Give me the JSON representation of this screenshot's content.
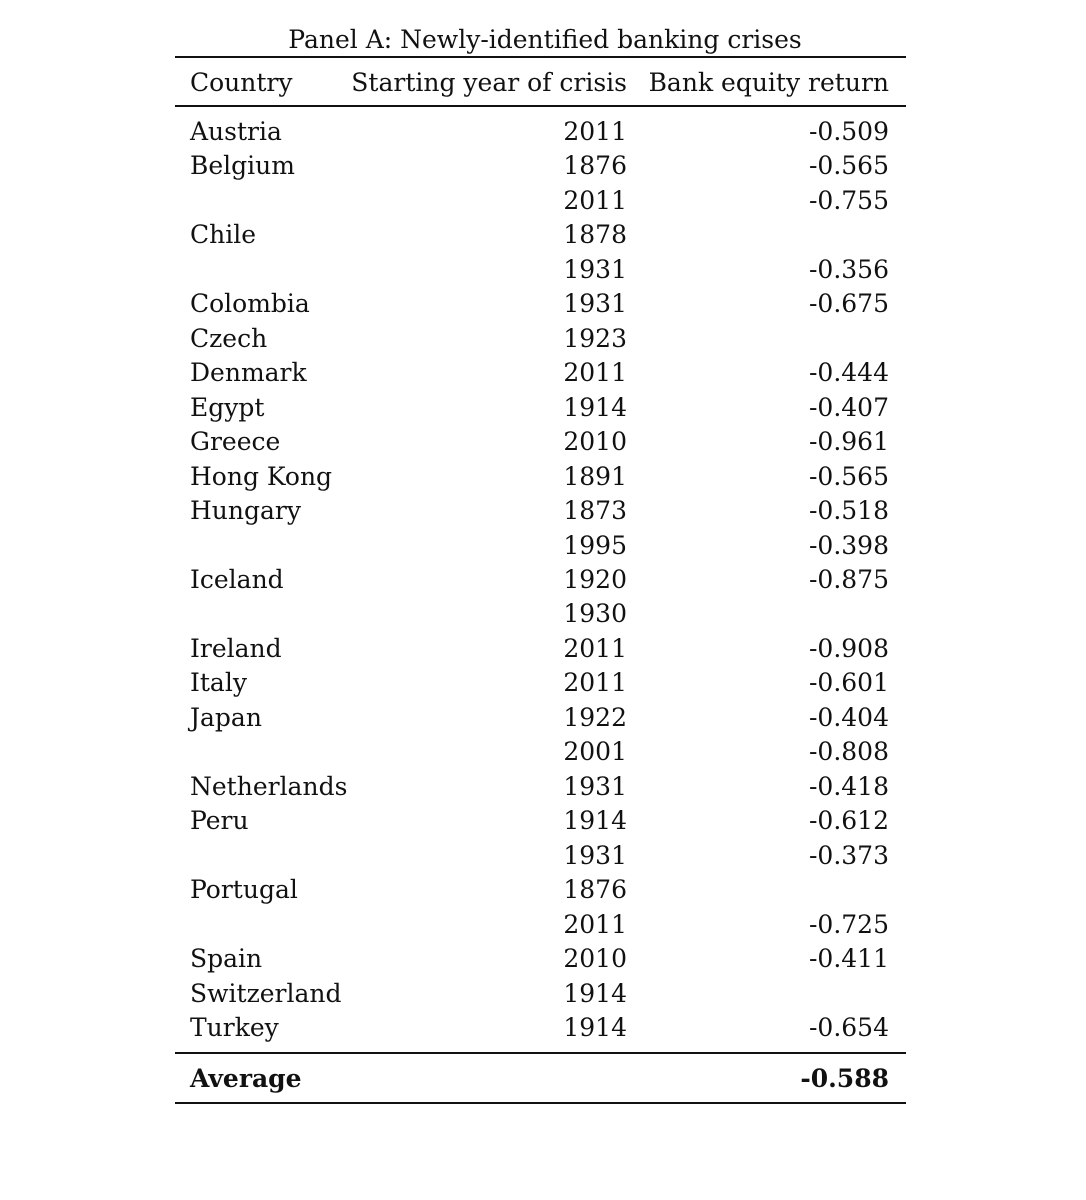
{
  "title": "Panel A: Newly-identified banking crises",
  "headers": [
    "Country",
    "Starting year of crisis",
    "Bank equity return"
  ],
  "rows": [
    [
      "Austria",
      "2011",
      "-0.509"
    ],
    [
      "Belgium",
      "1876",
      "-0.565"
    ],
    [
      "",
      "2011",
      "-0.755"
    ],
    [
      "Chile",
      "1878",
      ""
    ],
    [
      "",
      "1931",
      "-0.356"
    ],
    [
      "Colombia",
      "1931",
      "-0.675"
    ],
    [
      "Czech",
      "1923",
      ""
    ],
    [
      "Denmark",
      "2011",
      "-0.444"
    ],
    [
      "Egypt",
      "1914",
      "-0.407"
    ],
    [
      "Greece",
      "2010",
      "-0.961"
    ],
    [
      "Hong Kong",
      "1891",
      "-0.565"
    ],
    [
      "Hungary",
      "1873",
      "-0.518"
    ],
    [
      "",
      "1995",
      "-0.398"
    ],
    [
      "Iceland",
      "1920",
      "-0.875"
    ],
    [
      "",
      "1930",
      ""
    ],
    [
      "Ireland",
      "2011",
      "-0.908"
    ],
    [
      "Italy",
      "2011",
      "-0.601"
    ],
    [
      "Japan",
      "1922",
      "-0.404"
    ],
    [
      "",
      "2001",
      "-0.808"
    ],
    [
      "Netherlands",
      "1931",
      "-0.418"
    ],
    [
      "Peru",
      "1914",
      "-0.612"
    ],
    [
      "",
      "1931",
      "-0.373"
    ],
    [
      "Portugal",
      "1876",
      ""
    ],
    [
      "",
      "2011",
      "-0.725"
    ],
    [
      "Spain",
      "2010",
      "-0.411"
    ],
    [
      "Switzerland",
      "1914",
      ""
    ],
    [
      "Turkey",
      "1914",
      "-0.654"
    ]
  ],
  "footer": {
    "label": "Average",
    "value": "-0.588"
  }
}
